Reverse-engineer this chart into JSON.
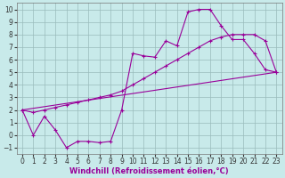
{
  "background_color": "#c8eaea",
  "grid_color": "#99bbbb",
  "line_color": "#990099",
  "marker_color": "#990099",
  "xlabel": "Windchill (Refroidissement éolien,°C)",
  "xlim": [
    -0.5,
    23.5
  ],
  "ylim": [
    -1.5,
    10.5
  ],
  "xticks": [
    0,
    1,
    2,
    3,
    4,
    5,
    6,
    7,
    8,
    9,
    10,
    11,
    12,
    13,
    14,
    15,
    16,
    17,
    18,
    19,
    20,
    21,
    22,
    23
  ],
  "yticks": [
    -1,
    0,
    1,
    2,
    3,
    4,
    5,
    6,
    7,
    8,
    9,
    10
  ],
  "line1_x": [
    0,
    1,
    2,
    3,
    4,
    5,
    6,
    7,
    8,
    9,
    10,
    11,
    12,
    13,
    14,
    15,
    16,
    17,
    18,
    19,
    20,
    21,
    22,
    23
  ],
  "line1_y": [
    2.0,
    0.0,
    1.5,
    0.4,
    -1.0,
    -0.5,
    -0.5,
    -0.6,
    -0.5,
    2.0,
    6.5,
    6.3,
    6.2,
    7.5,
    7.1,
    9.8,
    10.0,
    10.0,
    8.7,
    7.6,
    7.6,
    6.5,
    5.2,
    5.0
  ],
  "line2_x": [
    0,
    23
  ],
  "line2_y": [
    2.0,
    5.0
  ],
  "line3_x": [
    0,
    1,
    2,
    3,
    4,
    5,
    6,
    7,
    8,
    9,
    10,
    11,
    12,
    13,
    14,
    15,
    16,
    17,
    18,
    19,
    20,
    21,
    22,
    23
  ],
  "line3_y": [
    2.0,
    1.8,
    2.0,
    2.2,
    2.4,
    2.6,
    2.8,
    3.0,
    3.2,
    3.5,
    4.0,
    4.5,
    5.0,
    5.5,
    6.0,
    6.5,
    7.0,
    7.5,
    7.8,
    8.0,
    8.0,
    8.0,
    7.5,
    5.0
  ],
  "fontsize_label": 6.0,
  "fontsize_tick": 5.5
}
